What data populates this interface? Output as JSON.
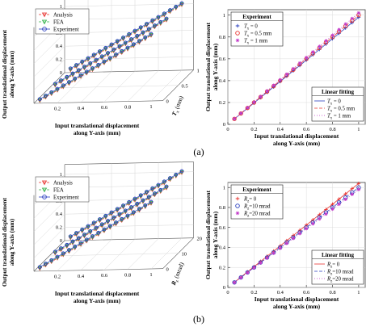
{
  "panel_labels": [
    "(a)",
    "(b)"
  ],
  "chart_data": [
    {
      "id": "a-3d",
      "type": "line",
      "projection": "3d",
      "xlabel_lines": [
        "Input translational displacement",
        "along Y-axis (mm)"
      ],
      "ylabel_lines": [
        "Output translational displacement",
        "along Y-axis (mm)"
      ],
      "zlabel_main": "T",
      "zlabel_sub": "x",
      "zlabel_unit": "(mm)",
      "xticks": [
        "0.2",
        "0.4",
        "0.6",
        "0.8",
        "1"
      ],
      "yticks": [
        "0",
        "0.2",
        "0.4",
        "0.6",
        "0.8",
        "1"
      ],
      "zticks": [
        "0",
        "0.5",
        "1"
      ],
      "xlim": [
        0,
        1.1
      ],
      "ylim": [
        0,
        1.15
      ],
      "zlim": [
        0,
        1
      ],
      "z_values": [
        0,
        0.5,
        1
      ],
      "x": [
        0.05,
        0.1,
        0.15,
        0.2,
        0.25,
        0.3,
        0.35,
        0.4,
        0.45,
        0.5,
        0.55,
        0.6,
        0.65,
        0.7,
        0.75,
        0.8,
        0.85,
        0.9,
        0.95,
        1.0
      ],
      "slope": 1.0,
      "legend_position": "top-left",
      "series": [
        {
          "name": "Analysis",
          "marker": "triangle-down",
          "color": "#e8322e",
          "line": "dashed"
        },
        {
          "name": "FEA",
          "marker": "triangle-down",
          "color": "#33b24a",
          "line": "dashed"
        },
        {
          "name": "Experiment",
          "marker": "circle",
          "color": "#2b3fbf",
          "line": "solid"
        }
      ]
    },
    {
      "id": "a-2d",
      "type": "scatter",
      "xlabel_lines": [
        "Input translational displacement",
        "along Y-axis (mm)"
      ],
      "ylabel_lines": [
        "Output translational displacement",
        "along Y-axis (mm)"
      ],
      "xticks": [
        "0",
        "0.2",
        "0.4",
        "0.6",
        "0.8",
        "1"
      ],
      "yticks": [
        "0",
        "0.2",
        "0.4",
        "0.6",
        "0.8",
        "1"
      ],
      "xlim": [
        0,
        1.05
      ],
      "ylim": [
        0,
        1.05
      ],
      "legend_position": "top-left",
      "legend_title": "Experiment",
      "legend2_title": "Linear fitting",
      "legend2_position": "bottom-right",
      "series": [
        {
          "sym": "T",
          "sub": "x",
          "suffix": " = 0",
          "marker": "plus",
          "color": "#2b3fbf",
          "fit": {
            "color": "#2b3fbf",
            "dash": ""
          },
          "x": [
            0.05,
            0.1,
            0.15,
            0.2,
            0.25,
            0.3,
            0.35,
            0.4,
            0.45,
            0.5,
            0.55,
            0.6,
            0.65,
            0.7,
            0.75,
            0.8,
            0.85,
            0.9,
            0.95,
            1.0
          ],
          "y": [
            0.049,
            0.098,
            0.147,
            0.196,
            0.245,
            0.294,
            0.343,
            0.392,
            0.441,
            0.49,
            0.539,
            0.588,
            0.637,
            0.686,
            0.735,
            0.784,
            0.833,
            0.882,
            0.931,
            0.98
          ]
        },
        {
          "sym": "T",
          "sub": "x",
          "suffix": " = 0.5 mm",
          "marker": "circle",
          "color": "#e8322e",
          "fit": {
            "color": "#e8322e",
            "dash": "4 2"
          },
          "x": [
            0.05,
            0.1,
            0.15,
            0.2,
            0.25,
            0.3,
            0.35,
            0.4,
            0.45,
            0.5,
            0.55,
            0.6,
            0.65,
            0.7,
            0.75,
            0.8,
            0.85,
            0.9,
            0.95,
            1.0
          ],
          "y": [
            0.05,
            0.1,
            0.15,
            0.2,
            0.25,
            0.3,
            0.35,
            0.4,
            0.45,
            0.5,
            0.55,
            0.6,
            0.65,
            0.7,
            0.75,
            0.8,
            0.85,
            0.9,
            0.95,
            1.0
          ]
        },
        {
          "sym": "T",
          "sub": "x",
          "suffix": " = 1 mm",
          "marker": "star",
          "color": "#c23ac8",
          "fit": {
            "color": "#c23ac8",
            "dash": "1 2"
          },
          "x": [
            0.05,
            0.1,
            0.15,
            0.2,
            0.25,
            0.3,
            0.35,
            0.4,
            0.45,
            0.5,
            0.55,
            0.6,
            0.65,
            0.7,
            0.75,
            0.8,
            0.85,
            0.9,
            0.95,
            1.0
          ],
          "y": [
            0.051,
            0.102,
            0.153,
            0.204,
            0.255,
            0.306,
            0.357,
            0.408,
            0.459,
            0.51,
            0.561,
            0.612,
            0.663,
            0.714,
            0.765,
            0.816,
            0.867,
            0.918,
            0.969,
            1.02
          ]
        }
      ]
    },
    {
      "id": "b-3d",
      "type": "line",
      "projection": "3d",
      "xlabel_lines": [
        "Input translational displacement",
        "along Y-axis (mm)"
      ],
      "ylabel_lines": [
        "Output translational displacement",
        "along Y-axis (mm)"
      ],
      "zlabel_main": "R",
      "zlabel_sub": "z",
      "zlabel_unit": "(mrad)",
      "xticks": [
        "0.2",
        "0.4",
        "0.6",
        "0.8",
        "1"
      ],
      "yticks": [
        "0",
        "0.2",
        "0.4",
        "0.6",
        "0.8",
        "1"
      ],
      "zticks": [
        "0",
        "10",
        "20"
      ],
      "xlim": [
        0,
        1.1
      ],
      "ylim": [
        0,
        1.15
      ],
      "zlim": [
        0,
        20
      ],
      "z_values": [
        0,
        10,
        20
      ],
      "x": [
        0.05,
        0.1,
        0.15,
        0.2,
        0.25,
        0.3,
        0.35,
        0.4,
        0.45,
        0.5,
        0.55,
        0.6,
        0.65,
        0.7,
        0.75,
        0.8,
        0.85,
        0.9,
        0.95,
        1.0
      ],
      "slope": 1.0,
      "legend_position": "top-left",
      "series": [
        {
          "name": "Analysis",
          "marker": "triangle-down",
          "color": "#e8322e",
          "line": "dashed"
        },
        {
          "name": "FEA",
          "marker": "triangle-down",
          "color": "#33b24a",
          "line": "dashed"
        },
        {
          "name": "Experiment",
          "marker": "circle",
          "color": "#2b3fbf",
          "line": "solid"
        }
      ]
    },
    {
      "id": "b-2d",
      "type": "scatter",
      "xlabel_lines": [
        "Input translational displacement",
        "along Y-axis (mm)"
      ],
      "ylabel_lines": [
        "Output translational displacement",
        "along Y-axis (mm)"
      ],
      "xticks": [
        "0",
        "0.2",
        "0.4",
        "0.6",
        "0.8",
        "1"
      ],
      "yticks": [
        "0",
        "0.2",
        "0.4",
        "0.6",
        "0.8",
        "1"
      ],
      "xlim": [
        0,
        1.05
      ],
      "ylim": [
        0,
        1.05
      ],
      "legend_position": "top-left",
      "legend_title": "Experiment",
      "legend2_title": "Linear fitting",
      "legend2_position": "bottom-right",
      "series": [
        {
          "sym": "R",
          "sub": "z",
          "suffix": "= 0",
          "marker": "plus",
          "color": "#e8322e",
          "fit": {
            "color": "#e8322e",
            "dash": ""
          },
          "x": [
            0.05,
            0.1,
            0.15,
            0.2,
            0.25,
            0.3,
            0.35,
            0.4,
            0.45,
            0.5,
            0.55,
            0.6,
            0.65,
            0.7,
            0.75,
            0.8,
            0.85,
            0.9,
            0.95,
            1.0
          ],
          "y": [
            0.052,
            0.104,
            0.156,
            0.208,
            0.26,
            0.312,
            0.364,
            0.416,
            0.468,
            0.52,
            0.572,
            0.624,
            0.676,
            0.728,
            0.78,
            0.832,
            0.884,
            0.936,
            0.988,
            1.04
          ]
        },
        {
          "sym": "R",
          "sub": "z",
          "suffix": "=10 mrad",
          "marker": "circle",
          "color": "#2b3fbf",
          "fit": {
            "color": "#2b3fbf",
            "dash": "4 2"
          },
          "x": [
            0.05,
            0.1,
            0.15,
            0.2,
            0.25,
            0.3,
            0.35,
            0.4,
            0.45,
            0.5,
            0.55,
            0.6,
            0.65,
            0.7,
            0.75,
            0.8,
            0.85,
            0.9,
            0.95,
            1.0
          ],
          "y": [
            0.05,
            0.1,
            0.15,
            0.2,
            0.25,
            0.3,
            0.35,
            0.4,
            0.45,
            0.5,
            0.55,
            0.6,
            0.65,
            0.7,
            0.75,
            0.8,
            0.85,
            0.9,
            0.95,
            1.0
          ]
        },
        {
          "sym": "R",
          "sub": "z",
          "suffix": "=20 mrad",
          "marker": "star",
          "color": "#c23ac8",
          "fit": {
            "color": "#c23ac8",
            "dash": "1 2"
          },
          "x": [
            0.05,
            0.1,
            0.15,
            0.2,
            0.25,
            0.3,
            0.35,
            0.4,
            0.45,
            0.5,
            0.55,
            0.6,
            0.65,
            0.7,
            0.75,
            0.8,
            0.85,
            0.9,
            0.95,
            1.0
          ],
          "y": [
            0.049,
            0.098,
            0.147,
            0.196,
            0.245,
            0.294,
            0.343,
            0.392,
            0.441,
            0.49,
            0.539,
            0.588,
            0.637,
            0.686,
            0.735,
            0.784,
            0.833,
            0.882,
            0.931,
            0.98
          ]
        }
      ]
    }
  ]
}
